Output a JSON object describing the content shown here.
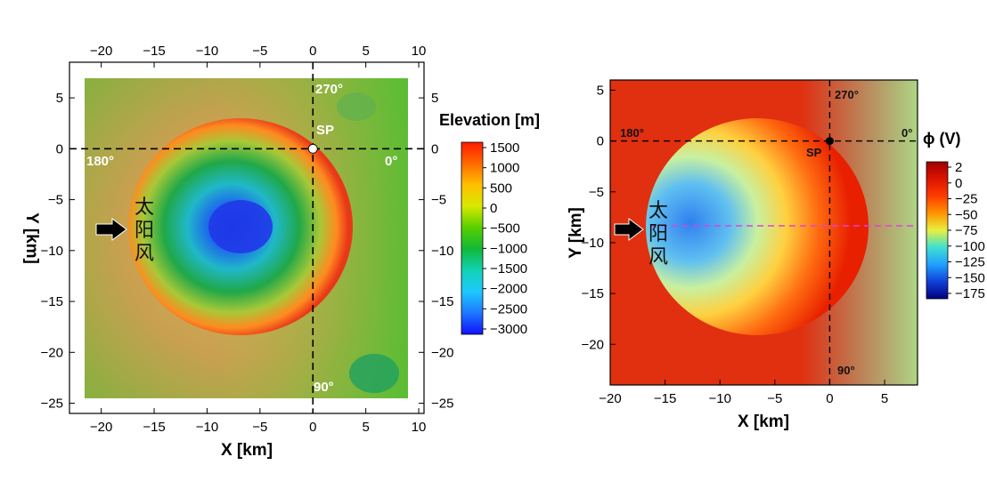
{
  "chart_data": [
    {
      "type": "heatmap",
      "xlabel": "X [km]",
      "ylabel": "Y [km]",
      "xlim": [
        -23,
        10.5
      ],
      "ylim": [
        -26,
        8.5
      ],
      "xticks": [
        -20,
        -15,
        -10,
        -5,
        0,
        5,
        10
      ],
      "yticks": [
        5,
        0,
        -5,
        -10,
        -15,
        -20,
        -25
      ],
      "colorbar": {
        "title": "Elevation [m]",
        "ticks": [
          1500,
          1000,
          500,
          0,
          -500,
          -1000,
          -1500,
          -2000,
          -2500,
          -3000
        ],
        "colors": [
          "#ff1a00",
          "#ff6a00",
          "#ffc000",
          "#d8e800",
          "#58d000",
          "#12b838",
          "#12d2b4",
          "#1ec8ff",
          "#1e78ff",
          "#1010ff"
        ]
      },
      "annotations": {
        "sp_label": "SP",
        "deg_270": "270°",
        "deg_180": "180°",
        "deg_0": "0°",
        "deg_90": "90°",
        "solar_wind": [
          "太",
          "阳",
          "风"
        ]
      }
    },
    {
      "type": "heatmap",
      "xlabel": "X [km]",
      "ylabel": "Y [km]",
      "xlim": [
        -20,
        8
      ],
      "ylim": [
        -24,
        6
      ],
      "xticks": [
        -20,
        -15,
        -10,
        -5,
        0,
        5
      ],
      "yticks": [
        5,
        0,
        -5,
        -10,
        -15,
        -20
      ],
      "colorbar": {
        "title": "ϕ (V)",
        "ticks": [
          2,
          0,
          -25,
          -50,
          -75,
          -100,
          -125,
          -150,
          -175
        ],
        "colors": [
          "#a00000",
          "#dc1400",
          "#ff3c00",
          "#ff9400",
          "#e8f040",
          "#40e0d0",
          "#20a0ff",
          "#1040d8",
          "#000080"
        ]
      },
      "annotations": {
        "sp_label": "SP",
        "deg_270": "270°",
        "deg_180": "180°",
        "deg_0": "0°",
        "deg_90": "90°",
        "solar_wind": [
          "太",
          "阳",
          "风"
        ]
      }
    }
  ]
}
